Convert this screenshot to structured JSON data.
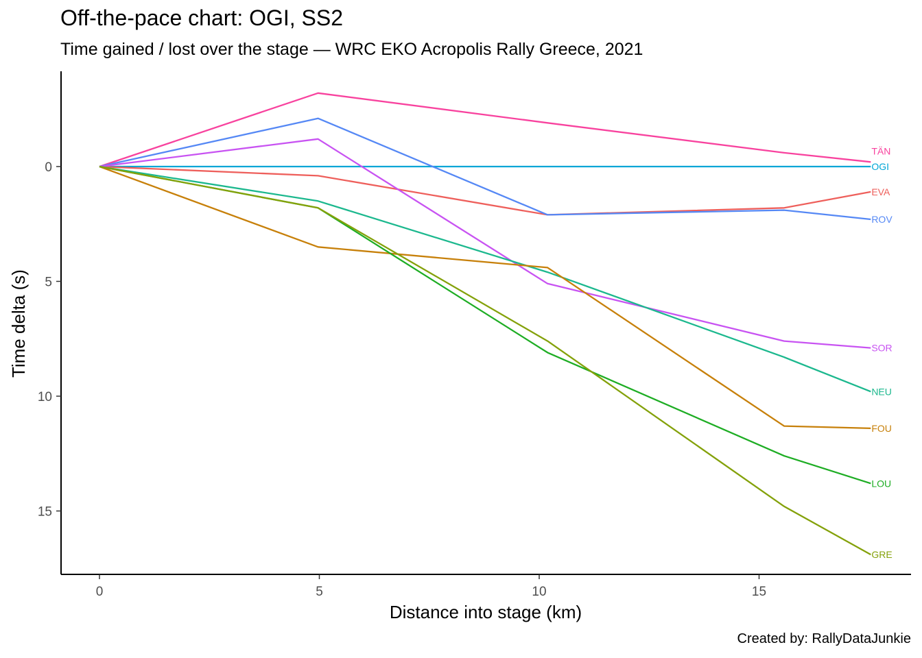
{
  "title": "Off-the-pace chart: OGI, SS2",
  "subtitle": "Time gained / lost over the stage — WRC EKO Acropolis Rally Greece, 2021",
  "caption": "Created by: RallyDataJunkie",
  "chart_data": {
    "type": "line",
    "title": "Off-the-pace chart: OGI, SS2",
    "subtitle": "Time gained / lost over the stage — WRC EKO Acropolis Rally Greece, 2021",
    "xlabel": "Distance into stage (km)",
    "ylabel": "Time delta (s)",
    "xlim": [
      -1.7,
      18.5
    ],
    "ylim": [
      -4.0,
      17.8
    ],
    "y_reversed": true,
    "x_ticks": [
      0,
      5,
      10,
      15
    ],
    "y_ticks": [
      0,
      5,
      10,
      15
    ],
    "grid": false,
    "legend": "direct labels at line ends",
    "x": [
      0,
      4.97,
      10.19,
      15.57,
      17.54
    ],
    "series": [
      {
        "name": "TÄN",
        "color": "#F8429E",
        "values": [
          0,
          -3.2,
          -1.9,
          -0.6,
          -0.2
        ]
      },
      {
        "name": "OGI",
        "color": "#00A6D6",
        "values": [
          0,
          0,
          0,
          0,
          0
        ]
      },
      {
        "name": "EVA",
        "color": "#EE5F5B",
        "values": [
          0,
          0.4,
          2.1,
          1.8,
          1.1
        ]
      },
      {
        "name": "ROV",
        "color": "#5588F5",
        "values": [
          0,
          -2.1,
          2.1,
          1.9,
          2.3
        ]
      },
      {
        "name": "SOR",
        "color": "#C853F2",
        "values": [
          0,
          -1.2,
          5.1,
          7.6,
          7.9
        ]
      },
      {
        "name": "NEU",
        "color": "#1CB88E",
        "values": [
          0,
          1.5,
          4.6,
          8.3,
          9.8
        ]
      },
      {
        "name": "FOU",
        "color": "#C7800A",
        "values": [
          0,
          3.5,
          4.4,
          11.3,
          11.4
        ]
      },
      {
        "name": "LOU",
        "color": "#1EAD24",
        "values": [
          0,
          1.8,
          8.1,
          12.6,
          13.8
        ]
      },
      {
        "name": "GRE",
        "color": "#84A10A",
        "values": [
          0,
          1.8,
          7.6,
          14.8,
          16.9
        ]
      }
    ]
  }
}
